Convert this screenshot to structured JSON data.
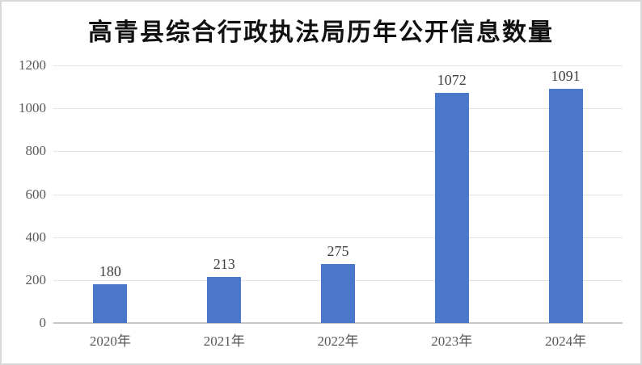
{
  "chart_data": {
    "type": "bar",
    "title": "高青县综合行政执法局历年公开信息数量",
    "categories": [
      "2020年",
      "2021年",
      "2022年",
      "2023年",
      "2024年"
    ],
    "values": [
      180,
      213,
      275,
      1072,
      1091
    ],
    "xlabel": "",
    "ylabel": "",
    "ylim": [
      0,
      1200
    ],
    "yticks": [
      0,
      200,
      400,
      600,
      800,
      1000,
      1200
    ],
    "grid": true,
    "legend": "none",
    "colors": {
      "bar": "#4B77CB",
      "gridline": "#E2E2E2",
      "axis_line": "#C6C6C6",
      "tick_label": "#595959",
      "value_label": "#3F3F3F",
      "title": "#111111",
      "frame_border": "#D9D9D9",
      "background": "#FFFFFF"
    }
  }
}
